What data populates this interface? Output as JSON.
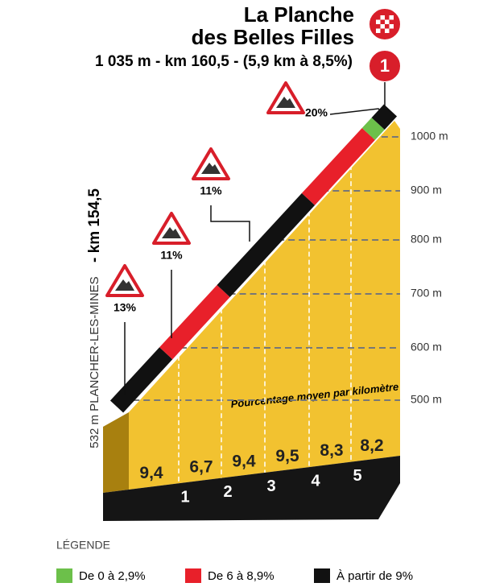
{
  "header": {
    "title_lines": [
      "La Planche",
      "des Belles Filles"
    ],
    "summary": "1 035 m - km 160,5 - (5,9 km à 8,5%)",
    "badge": "1"
  },
  "start": {
    "altitude": "532 m PLANCHER-LES-MINES",
    "km": "- km 154,5"
  },
  "altitude_labels": [
    "1000 m",
    "900 m",
    "800 m",
    "700 m",
    "600 m",
    "500 m"
  ],
  "km_markers": [
    "1",
    "2",
    "3",
    "4",
    "5"
  ],
  "gradients": [
    "9,4",
    "6,7",
    "9,4",
    "9,5",
    "8,3",
    "8,2"
  ],
  "gradient_caption": "Pourcentage moyen par kilomètre",
  "climbs": [
    "13%",
    "11%",
    "11%",
    "20%"
  ],
  "legend": {
    "title": "LÉGENDE",
    "items": [
      {
        "color": "#6cc04a",
        "label": "De 0 à 2,9%"
      },
      {
        "color": "#e8202a",
        "label": "De 6 à 8,9%"
      },
      {
        "color": "#111111",
        "label": "À partir de 9%"
      }
    ]
  }
}
